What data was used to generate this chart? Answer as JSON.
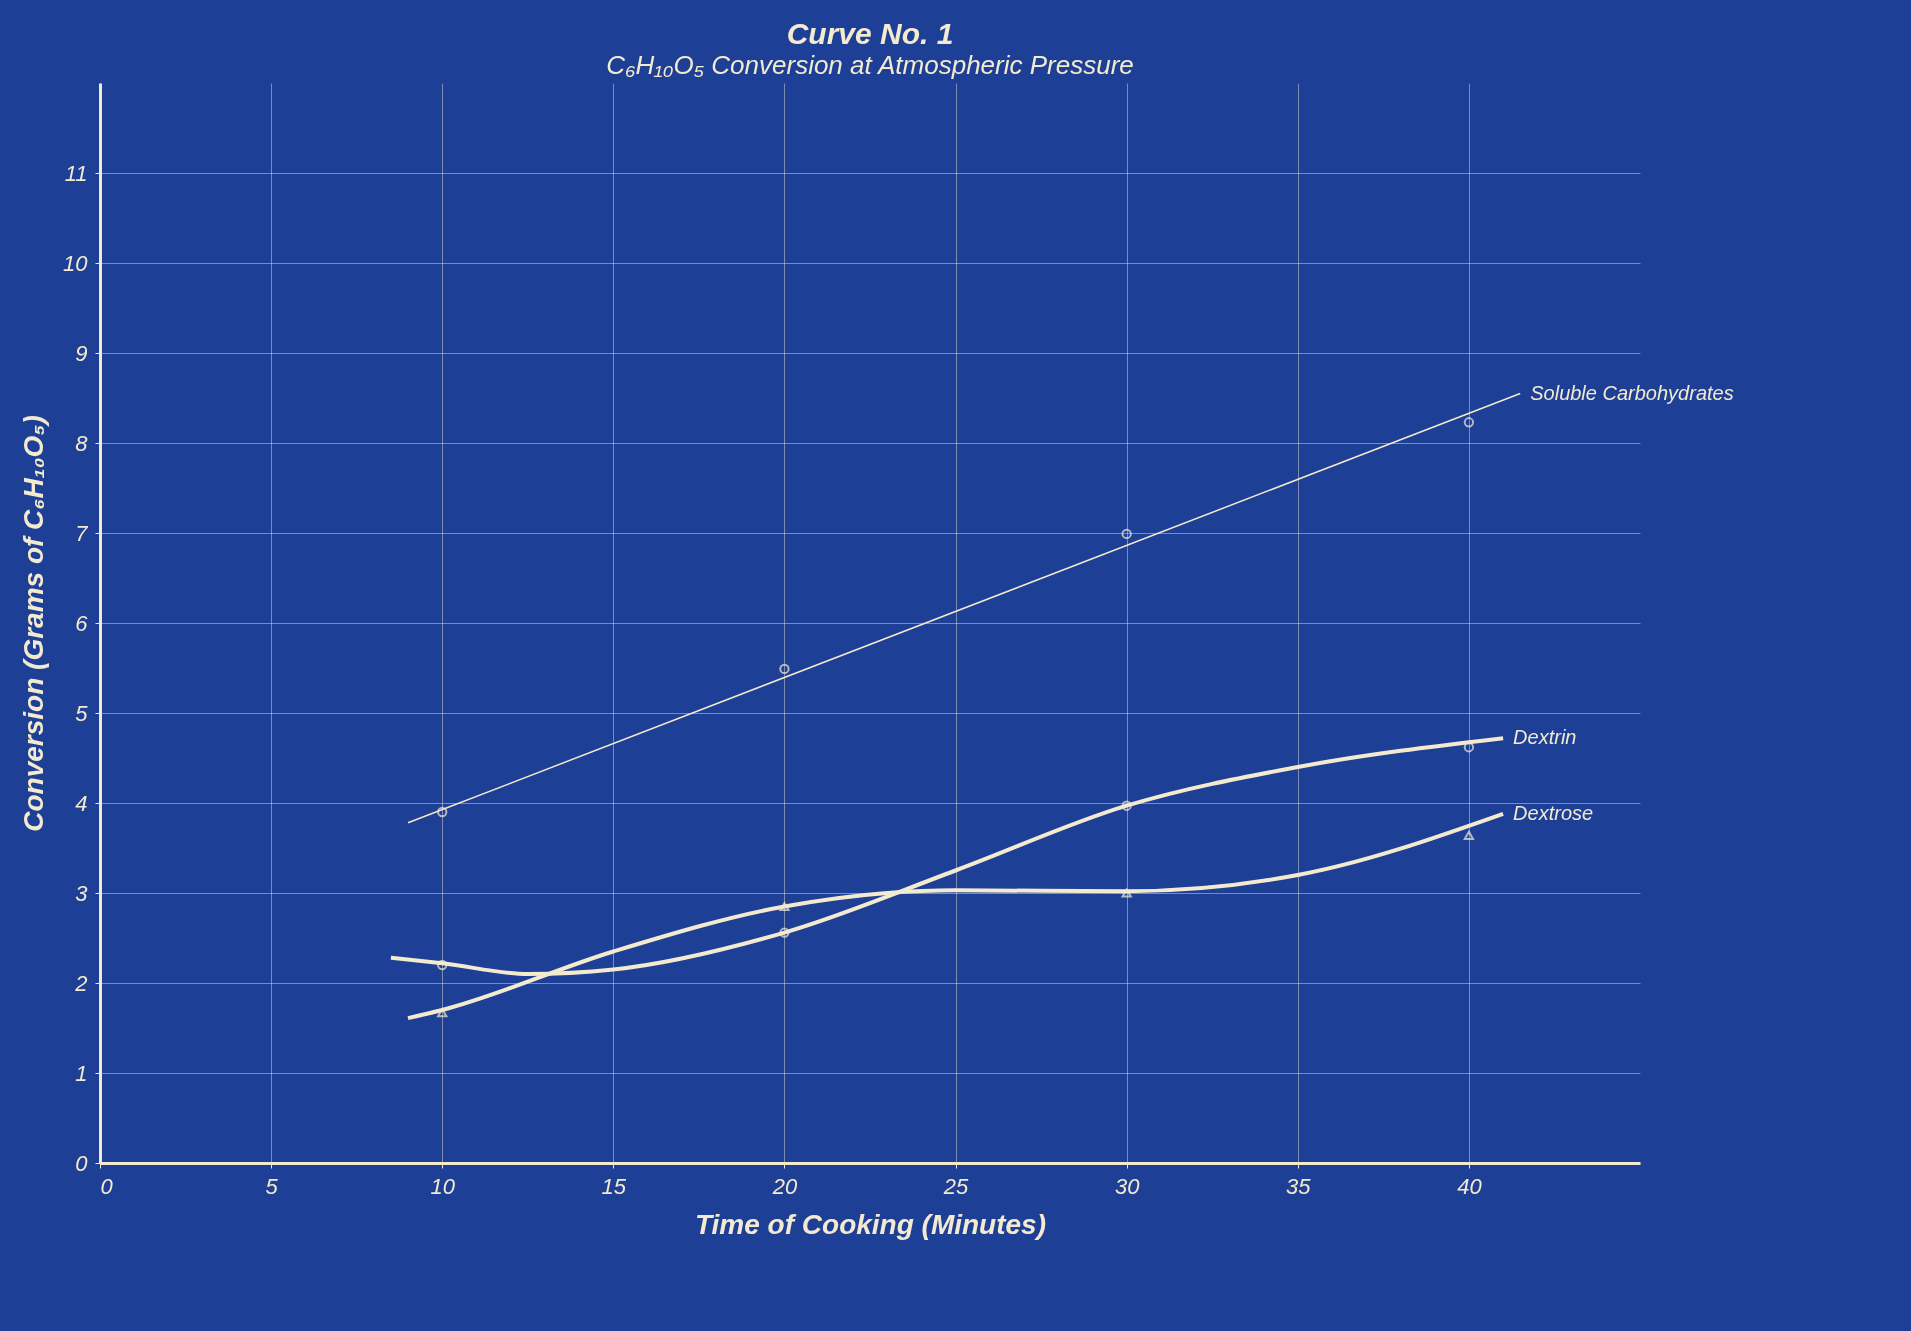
{
  "chart_data": {
    "type": "line",
    "title": "Curve No. 1",
    "subtitle": "C₆H₁₀O₅ Conversion at Atmospheric Pressure",
    "xlabel": "Time of Cooking (Minutes)",
    "ylabel": "Conversion (Grams of C₆H₁₀O₅)",
    "xlim": [
      0,
      45
    ],
    "xticks": [
      0,
      5,
      10,
      15,
      20,
      25,
      30,
      35,
      40
    ],
    "ylim": [
      0,
      12
    ],
    "yticks": [
      0,
      1,
      2,
      3,
      4,
      5,
      6,
      7,
      8,
      9,
      10,
      11
    ],
    "grid": true,
    "series": [
      {
        "name": "Soluble Carbohydrates",
        "color": "#f3ead0",
        "marker": "none",
        "x": [
          9,
          41.5
        ],
        "values": [
          3.78,
          8.55
        ]
      },
      {
        "name": "Dextrin",
        "color": "#f3ead0",
        "marker": "none",
        "x": [
          8.5,
          10,
          12.5,
          15,
          20,
          25,
          30,
          35,
          41
        ],
        "values": [
          2.28,
          2.22,
          2.1,
          2.15,
          2.56,
          3.25,
          3.97,
          4.4,
          4.72
        ]
      },
      {
        "name": "Dextrose",
        "color": "#f3ead0",
        "marker": "none",
        "x": [
          9,
          10,
          15,
          20,
          23,
          25,
          30,
          35,
          41
        ],
        "values": [
          1.61,
          1.7,
          2.35,
          2.85,
          3.0,
          3.03,
          3.02,
          3.2,
          3.88
        ]
      },
      {
        "type": "scatter",
        "color": "#f3ead0",
        "marker": "circle",
        "x": [
          10,
          20,
          30,
          40
        ],
        "values": [
          3.9,
          5.49,
          6.99,
          8.23
        ]
      },
      {
        "type": "scatter",
        "color": "#f3ead0",
        "marker": "circle",
        "x": [
          10,
          20,
          30,
          40
        ],
        "values": [
          2.2,
          2.56,
          3.97,
          4.62
        ]
      },
      {
        "type": "scatter",
        "color": "#f3ead0",
        "marker": "triangle",
        "x": [
          10,
          20,
          30,
          40
        ],
        "values": [
          1.67,
          2.85,
          3.0,
          3.64
        ]
      }
    ]
  }
}
